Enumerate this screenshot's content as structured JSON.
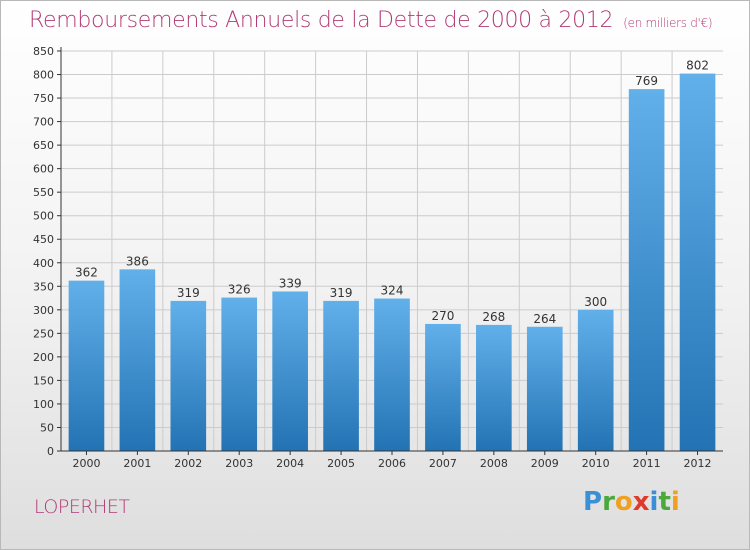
{
  "title": "Remboursements Annuels de la Dette de 2000 à 2012",
  "unit": "(en milliers d'€)",
  "commune": "LOPERHET",
  "logo": {
    "text": "Proxiti",
    "letters": [
      "P",
      "r",
      "o",
      "x",
      "i",
      "t",
      "i"
    ],
    "colors": [
      "#3a8fd6",
      "#4aa83c",
      "#f0a020",
      "#e23a2a",
      "#3a8fd6",
      "#4aa83c",
      "#f0a020"
    ]
  },
  "colors": {
    "title": "#b13a74",
    "bar_top": "#62b0ea",
    "bar_bottom": "#2373b4",
    "grid": "#cccccc",
    "axis": "#333333"
  },
  "chart_data": {
    "type": "bar",
    "title": "Remboursements Annuels de la Dette de 2000 à 2012",
    "categories": [
      "2000",
      "2001",
      "2002",
      "2003",
      "2004",
      "2005",
      "2006",
      "2007",
      "2008",
      "2009",
      "2010",
      "2011",
      "2012"
    ],
    "values": [
      362,
      386,
      319,
      326,
      339,
      319,
      324,
      270,
      268,
      264,
      300,
      769,
      802
    ],
    "ylim": [
      0,
      850
    ],
    "yticks": [
      0,
      50,
      100,
      150,
      200,
      250,
      300,
      350,
      400,
      450,
      500,
      550,
      600,
      650,
      700,
      750,
      800,
      850
    ],
    "grid": true,
    "xlabel": "",
    "ylabel": ""
  }
}
